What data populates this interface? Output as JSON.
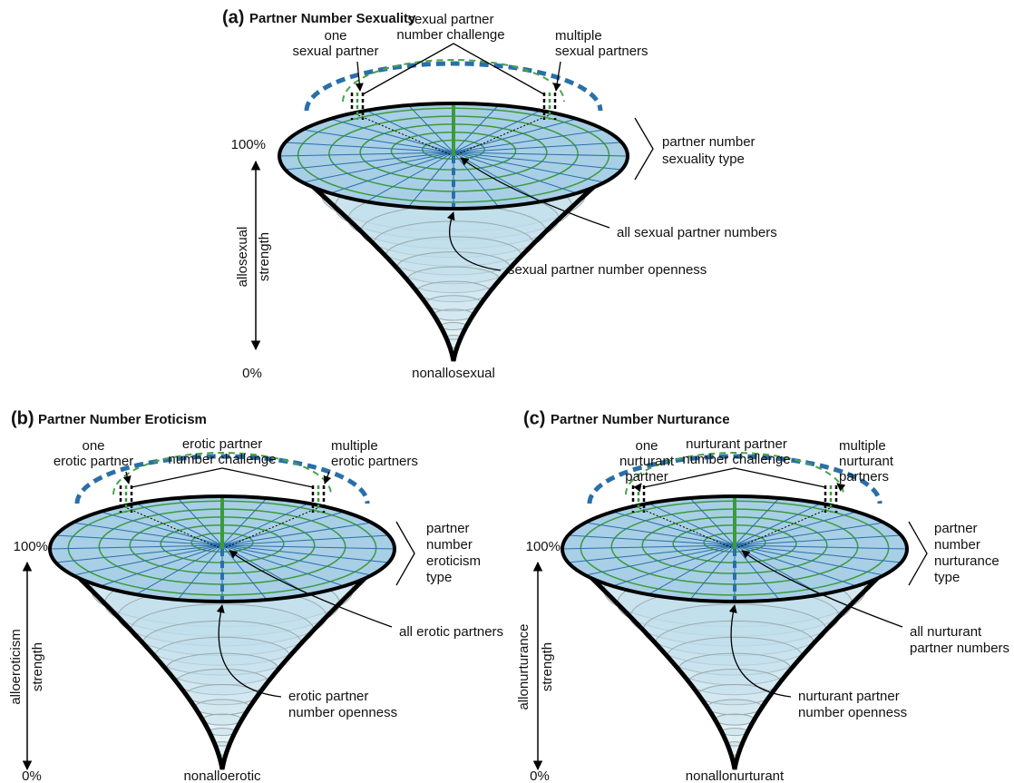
{
  "panels": [
    {
      "label": "(a)",
      "title": "Partner Number Sexuality",
      "left_top": [
        "one",
        "sexual partner"
      ],
      "challenge": [
        "sexual partner",
        "number challenge"
      ],
      "right_top": [
        "multiple",
        "sexual partners"
      ],
      "type_label": [
        "partner number",
        "sexuality type"
      ],
      "center_label": [
        "all sexual partner numbers"
      ],
      "openness_label": [
        "sexual partner number openness"
      ],
      "axis_top": "100%",
      "axis_bottom": "0%",
      "axis_name": [
        "allosexual",
        "strength"
      ],
      "bottom_label": "nonallosexual"
    },
    {
      "label": "(b)",
      "title": "Partner Number Eroticism",
      "left_top": [
        "one",
        "erotic partner"
      ],
      "challenge": [
        "erotic partner",
        "number challenge"
      ],
      "right_top": [
        "multiple",
        "erotic partners"
      ],
      "type_label": [
        "partner",
        "number",
        "eroticism",
        "type"
      ],
      "center_label": [
        "all erotic partners"
      ],
      "openness_label": [
        "erotic partner",
        "number openness"
      ],
      "axis_top": "100%",
      "axis_bottom": "0%",
      "axis_name": [
        "alloeroticism",
        "strength"
      ],
      "bottom_label": "nonalloerotic"
    },
    {
      "label": "(c)",
      "title": "Partner Number Nurturance",
      "left_top": [
        "one",
        "nurturant",
        "partner"
      ],
      "challenge": [
        "nurturant partner",
        "number challenge"
      ],
      "right_top": [
        "multiple",
        "nurturant",
        "partners"
      ],
      "type_label": [
        "partner",
        "number",
        "nurturance",
        "type"
      ],
      "center_label": [
        "all nurturant",
        "partner numbers"
      ],
      "openness_label": [
        "nurturant partner",
        "number openness"
      ],
      "axis_top": "100%",
      "axis_bottom": "0%",
      "axis_name": [
        "allonurturance",
        "strength"
      ],
      "bottom_label": "nonallonurturant"
    }
  ]
}
